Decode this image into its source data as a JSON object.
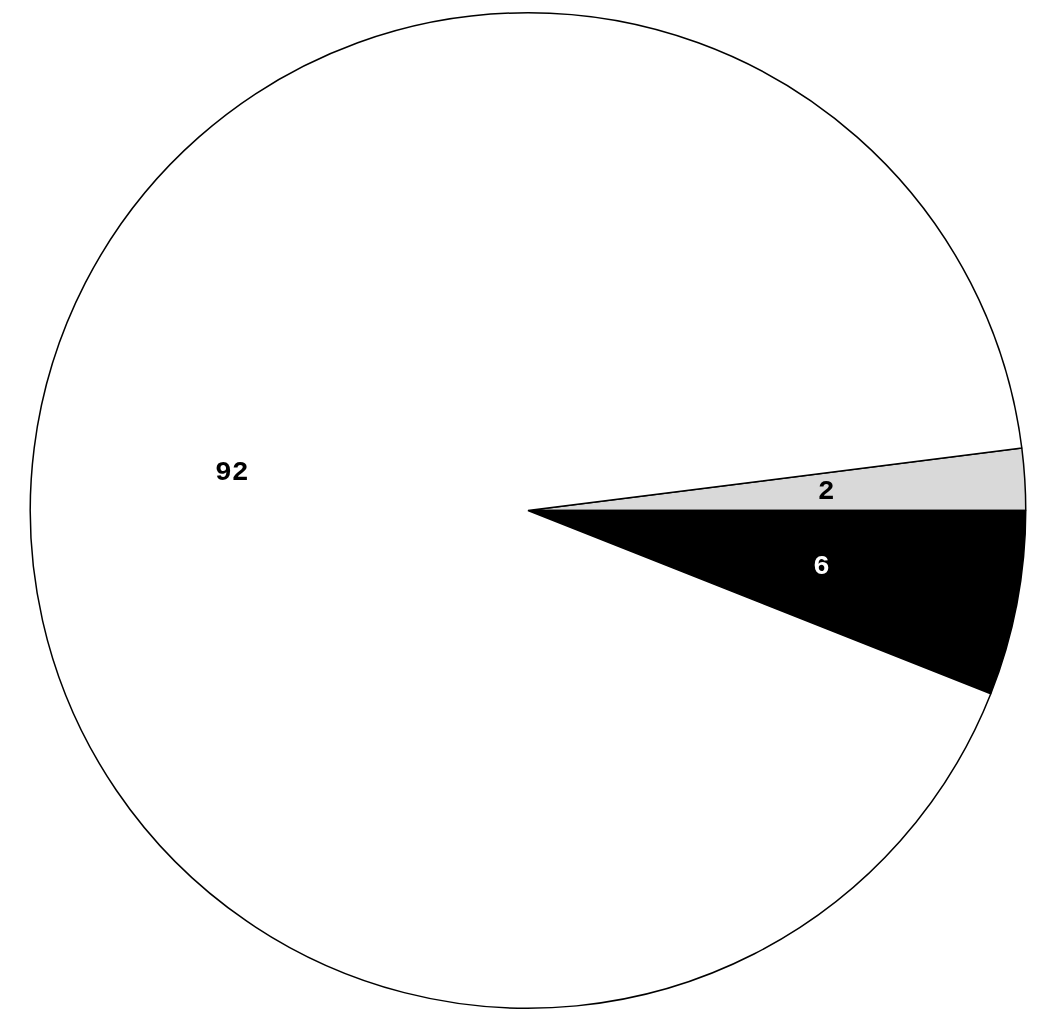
{
  "chart_data": {
    "type": "pie",
    "categories": [
      null,
      null,
      null
    ],
    "values": [
      2,
      6,
      92
    ],
    "colors": [
      "#d9d9d9",
      "#000000",
      "#ffffff"
    ],
    "data_labels": true,
    "legend": false
  }
}
